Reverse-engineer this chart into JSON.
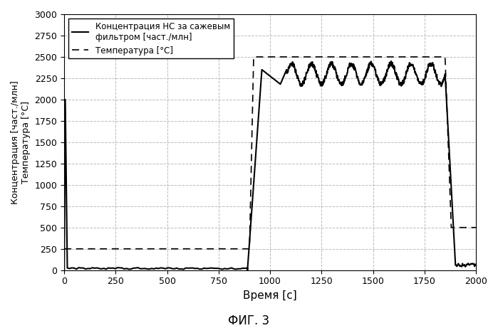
{
  "title": "ФИГ. 3",
  "xlabel": "Время [с]",
  "ylabel": "Концентрация [част./млн]\nТемпература [°C]",
  "xlim": [
    0,
    2000
  ],
  "ylim": [
    0,
    3000
  ],
  "xticks": [
    0,
    250,
    500,
    750,
    1000,
    1250,
    1500,
    1750,
    2000
  ],
  "yticks": [
    0,
    250,
    500,
    750,
    1000,
    1250,
    1500,
    1750,
    2000,
    2250,
    2500,
    2750,
    3000
  ],
  "legend_hc": "Концентрация НС за сажевым\nфильтром [част./млн]",
  "legend_temp": "Температура [°C]",
  "grid_color": "#aaaaaa",
  "line_color": "#000000",
  "background_color": "#ffffff"
}
